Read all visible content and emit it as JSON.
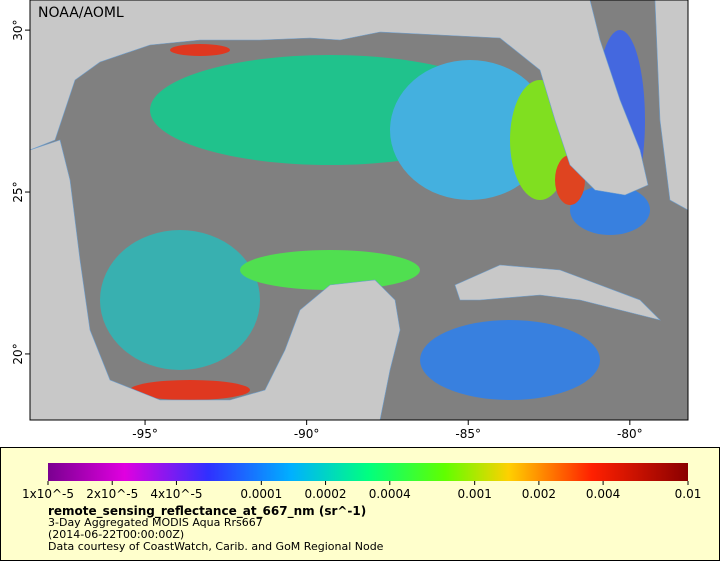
{
  "header": {
    "title": "NOAA/AOML"
  },
  "map": {
    "lonlim": [
      -98.56,
      -78.2
    ],
    "latlim": [
      17.96,
      30.93
    ],
    "lon_ticks": [
      {
        "value": -95,
        "label": "-95°"
      },
      {
        "value": -90,
        "label": "-90°"
      },
      {
        "value": -85,
        "label": "-85°"
      },
      {
        "value": -80,
        "label": "-80°"
      }
    ],
    "lat_ticks": [
      {
        "value": 30,
        "label": "30°"
      },
      {
        "value": 25,
        "label": "25°"
      },
      {
        "value": 20,
        "label": "20°"
      }
    ]
  },
  "legend": {
    "scale": "log",
    "range": [
      1e-05,
      0.01
    ],
    "ticks": [
      {
        "value": 1e-05,
        "label": "1x10^-5"
      },
      {
        "value": 2e-05,
        "label": "2x10^-5"
      },
      {
        "value": 4e-05,
        "label": "4x10^-5"
      },
      {
        "value": 0.0001,
        "label": "0.0001"
      },
      {
        "value": 0.0002,
        "label": "0.0002"
      },
      {
        "value": 0.0004,
        "label": "0.0004"
      },
      {
        "value": 0.001,
        "label": "0.001"
      },
      {
        "value": 0.002,
        "label": "0.002"
      },
      {
        "value": 0.004,
        "label": "0.004"
      },
      {
        "value": 0.01,
        "label": "0.01"
      }
    ],
    "title": "remote_sensing_reflectance_at_667_nm (sr^-1)",
    "lines": [
      "3-Day Aggregated MODIS Aqua Rrs667",
      "(2014-06-22T00:00:00Z)",
      "Data courtesy of CoastWatch, Carib. and GoM Regional Node"
    ]
  }
}
